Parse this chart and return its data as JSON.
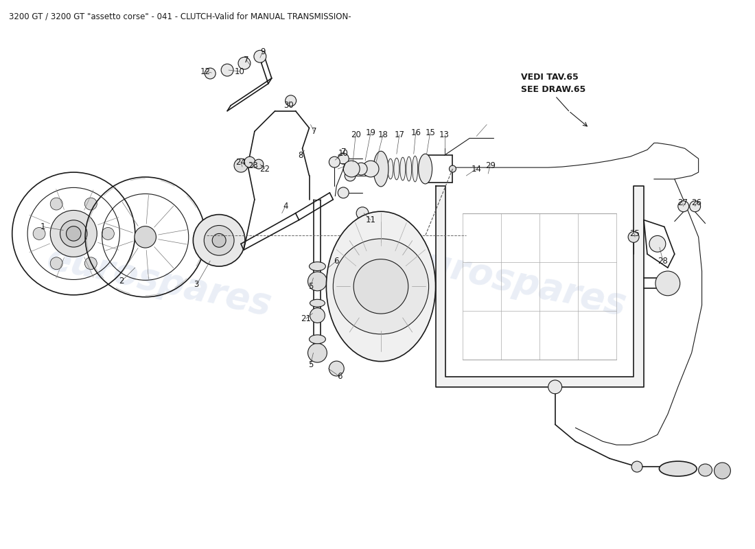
{
  "title": "3200 GT / 3200 GT \"assetto corse\" - 041 - CLUTCH-Valid for MANUAL TRANSMISSION-",
  "title_fontsize": 8.5,
  "background_color": "#ffffff",
  "watermark_text": "eurospares",
  "watermark_color": "#c8d4e8",
  "watermark_alpha": 0.38,
  "line_color": "#1a1a1a",
  "label_color": "#1a1a1a",
  "vedi_text": "VEDI TAV.65\nSEE DRAW.65"
}
